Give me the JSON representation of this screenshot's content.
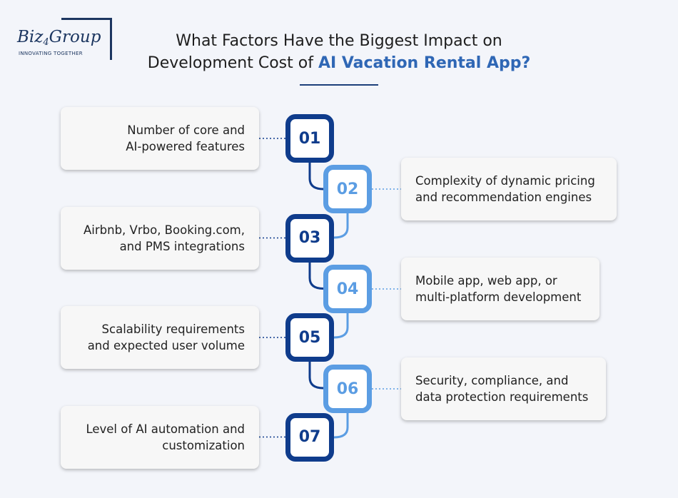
{
  "logo": {
    "parts": [
      "Biz",
      "4",
      "Group"
    ],
    "tagline": "INNOVATING TOGETHER"
  },
  "title": {
    "line1": "What Factors Have the Biggest Impact on",
    "line2": "Development Cost of",
    "highlight": "AI Vacation Rental App?"
  },
  "items": [
    {
      "number": "01",
      "lines": [
        "Number of core and",
        "AI-powered features"
      ]
    },
    {
      "number": "02",
      "lines": [
        "Complexity of dynamic pricing",
        "and recommendation engines"
      ]
    },
    {
      "number": "03",
      "lines": [
        "Airbnb, Vrbo, Booking.com,",
        "and PMS integrations"
      ]
    },
    {
      "number": "04",
      "lines": [
        "Mobile app, web app, or",
        "multi-platform development"
      ]
    },
    {
      "number": "05",
      "lines": [
        "Scalability requirements",
        "and expected user volume"
      ]
    },
    {
      "number": "06",
      "lines": [
        "Security, compliance, and",
        "data protection requirements"
      ]
    },
    {
      "number": "07",
      "lines": [
        "Level of AI automation and",
        "customization"
      ]
    }
  ]
}
